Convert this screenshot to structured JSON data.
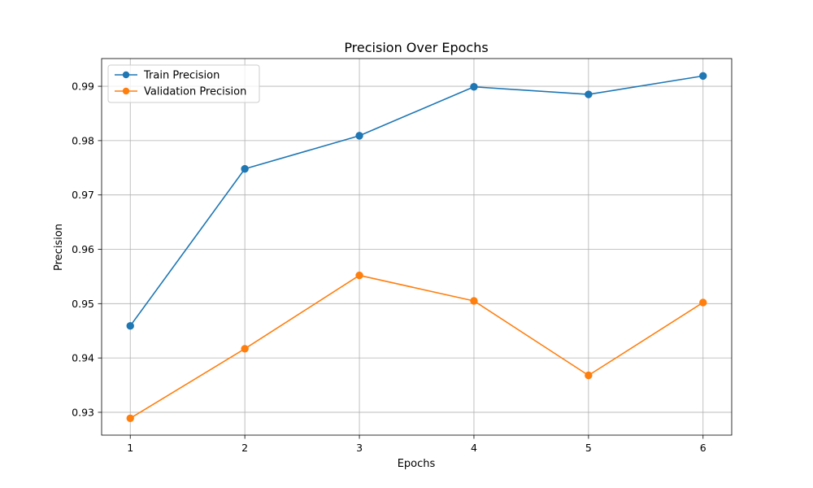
{
  "chart_data": {
    "type": "line",
    "title": "Precision Over Epochs",
    "xlabel": "Epochs",
    "ylabel": "Precision",
    "x": [
      1,
      2,
      3,
      4,
      5,
      6
    ],
    "xlim": [
      0.75,
      6.25
    ],
    "ylim": [
      0.9258,
      0.9951
    ],
    "xticks": [
      1,
      2,
      3,
      4,
      5,
      6
    ],
    "yticks": [
      0.93,
      0.94,
      0.95,
      0.96,
      0.97,
      0.98,
      0.99
    ],
    "ytick_labels": [
      "0.93",
      "0.94",
      "0.95",
      "0.96",
      "0.97",
      "0.98",
      "0.99"
    ],
    "grid": true,
    "legend_position": "top-left",
    "series": [
      {
        "name": "Train Precision",
        "color": "#1f77b4",
        "marker": "circle",
        "values": [
          0.9459,
          0.9748,
          0.9809,
          0.9899,
          0.9885,
          0.9919
        ]
      },
      {
        "name": "Validation Precision",
        "color": "#ff7f0e",
        "marker": "circle",
        "values": [
          0.9289,
          0.9417,
          0.9552,
          0.9505,
          0.9368,
          0.9502
        ]
      }
    ]
  }
}
